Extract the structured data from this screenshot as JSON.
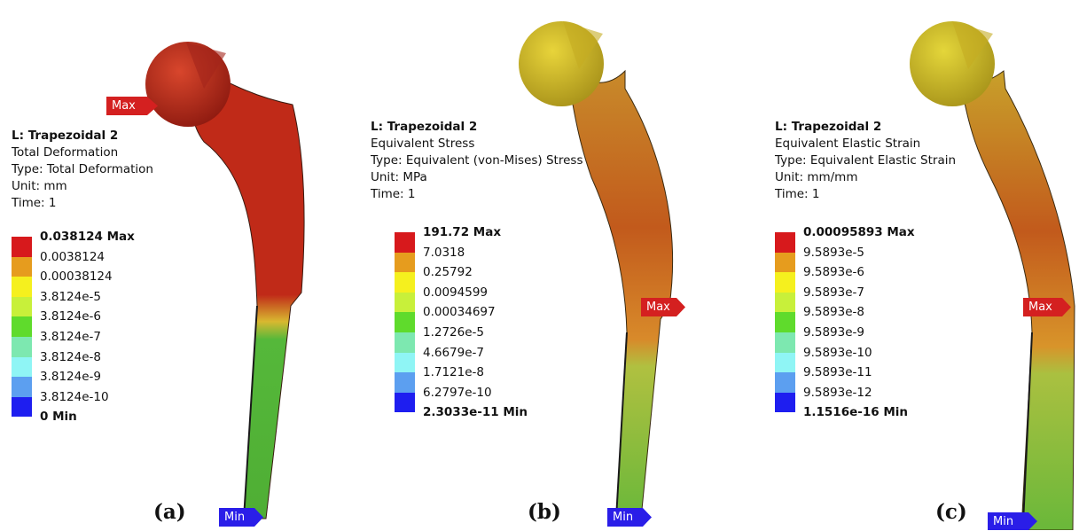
{
  "panels": [
    {
      "id": "a",
      "title": "L: Trapezoidal 2",
      "result": "Total Deformation",
      "type": "Type: Total Deformation",
      "unit": "Unit: mm",
      "time": "Time: 1",
      "legend": [
        "0.038124 Max",
        "0.0038124",
        "0.00038124",
        "3.8124e-5",
        "3.8124e-6",
        "3.8124e-7",
        "3.8124e-8",
        "3.8124e-9",
        "3.8124e-10",
        "0 Min"
      ],
      "max_tag": "Max",
      "min_tag": "Min",
      "caption": "(a)"
    },
    {
      "id": "b",
      "title": "L: Trapezoidal 2",
      "result": "Equivalent Stress",
      "type": "Type: Equivalent (von-Mises) Stress",
      "unit": "Unit: MPa",
      "time": "Time: 1",
      "legend": [
        "191.72 Max",
        "7.0318",
        "0.25792",
        "0.0094599",
        "0.00034697",
        "1.2726e-5",
        "4.6679e-7",
        "1.7121e-8",
        "6.2797e-10",
        "2.3033e-11 Min"
      ],
      "max_tag": "Max",
      "min_tag": "Min",
      "caption": "(b)"
    },
    {
      "id": "c",
      "title": "L: Trapezoidal 2",
      "result": "Equivalent Elastic Strain",
      "type": "Type: Equivalent Elastic Strain",
      "unit": "Unit: mm/mm",
      "time": "Time: 1",
      "legend": [
        "0.00095893 Max",
        "9.5893e-5",
        "9.5893e-6",
        "9.5893e-7",
        "9.5893e-8",
        "9.5893e-9",
        "9.5893e-10",
        "9.5893e-11",
        "9.5893e-12",
        "1.1516e-16 Min"
      ],
      "max_tag": "Max",
      "min_tag": "Min",
      "caption": "(c)"
    }
  ],
  "legend_colors": [
    "#d7191c",
    "#e69c1e",
    "#f5f01e",
    "#c8f03a",
    "#5fdb2c",
    "#7de8b0",
    "#8ff5f5",
    "#5c9ff0",
    "#1e1ef0"
  ],
  "colors": {
    "deformation_top": "#c42a1a",
    "stem_green": "#52b836",
    "head_yellow": "#d8c41f",
    "body_orange": "#c86a18",
    "max_tag": "#d42020",
    "min_tag": "#2a1ee8"
  }
}
